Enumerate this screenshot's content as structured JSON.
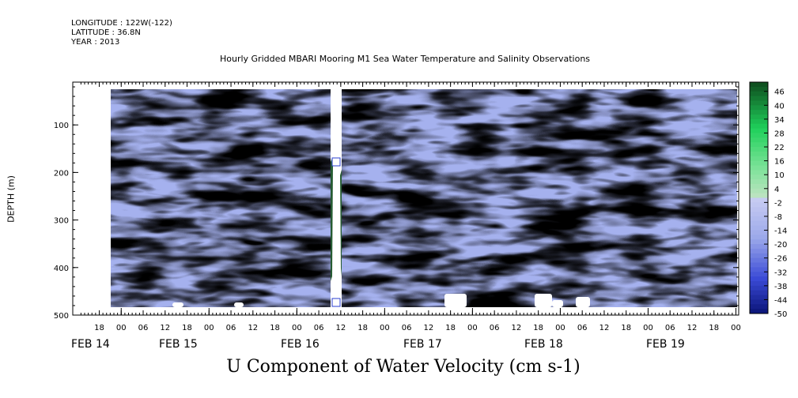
{
  "header": {
    "longitude": "LONGITUDE : 122W(-122)",
    "latitude": "LATITUDE : 36.8N",
    "year": "YEAR : 2013",
    "title": "Hourly Gridded MBARI Mooring M1 Sea Water Temperature and Salinity Observations"
  },
  "chart_data": {
    "type": "heatmap",
    "title": "Hourly Gridded MBARI Mooring M1 Sea Water Temperature and Salinity Observations",
    "xlabel": "U Component of Water Velocity (cm s-1)",
    "ylabel": "DEPTH (m)",
    "y_axis": {
      "range": [
        500,
        10
      ],
      "inverted": true,
      "ticks": [
        100,
        200,
        300,
        400,
        500
      ]
    },
    "x_axis": {
      "hour_ticks": [
        "18",
        "00",
        "06",
        "12",
        "18",
        "00",
        "06",
        "12",
        "18",
        "00",
        "06",
        "12",
        "18",
        "00",
        "06",
        "12",
        "18",
        "00",
        "06",
        "12",
        "18",
        "00",
        "06",
        "12",
        "18",
        "00",
        "06",
        "12",
        "18",
        "00"
      ],
      "day_labels": [
        "FEB 14",
        "FEB 15",
        "FEB 16",
        "FEB 17",
        "FEB 18",
        "FEB 19"
      ]
    },
    "colorbar": {
      "range": [
        -50,
        50
      ],
      "labels": [
        "46",
        "40",
        "34",
        "28",
        "22",
        "16",
        "10",
        "4",
        "-2",
        "-8",
        "-14",
        "-20",
        "-26",
        "-32",
        "-38",
        "-44",
        "-50"
      ]
    },
    "colors": {
      "negative_dark": "#0a1477",
      "negative_light": "#9ba8ea",
      "neutral": "#bfe3c2",
      "positive_light": "#7ee39a",
      "positive_dark": "#0e4a1d"
    }
  }
}
